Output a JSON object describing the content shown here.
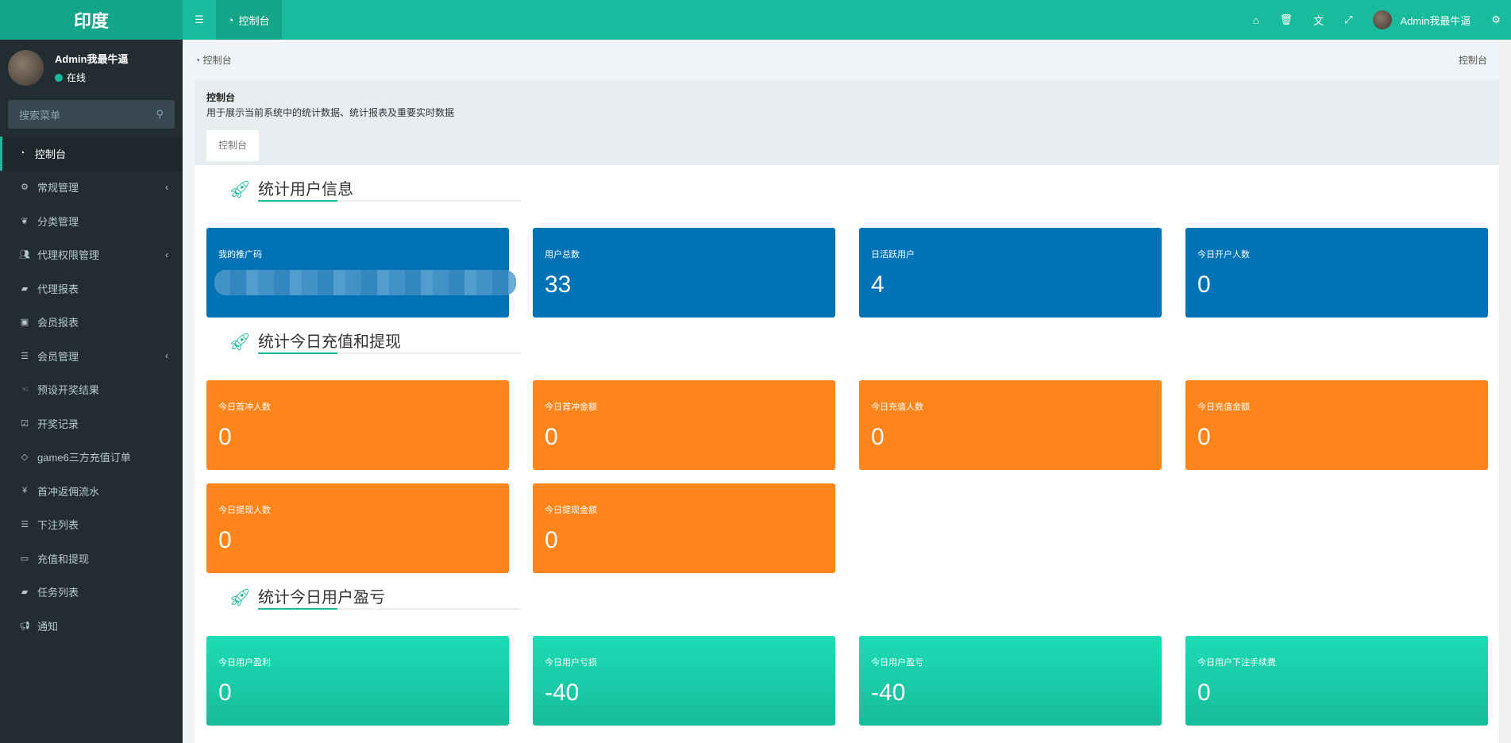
{
  "app": {
    "logo": "印度"
  },
  "navbar": {
    "tab_label": "控制台",
    "username": "Admin我最牛逼",
    "icons": [
      "home-icon",
      "trash-icon",
      "language-icon",
      "fullscreen-icon",
      "gears-icon"
    ]
  },
  "sidebar": {
    "user": {
      "name": "Admin我最牛逼",
      "status": "在线"
    },
    "search_placeholder": "搜索菜单",
    "items": [
      {
        "label": "控制台",
        "icon": "dashboard-icon",
        "active": true
      },
      {
        "label": "常规管理",
        "icon": "cogs-icon",
        "has_children": true
      },
      {
        "label": "分类管理",
        "icon": "leaf-icon"
      },
      {
        "label": "代理权限管理",
        "icon": "group-icon",
        "has_children": true
      },
      {
        "label": "代理报表",
        "icon": "book-icon"
      },
      {
        "label": "会员报表",
        "icon": "contact-icon"
      },
      {
        "label": "会员管理",
        "icon": "list-icon",
        "has_children": true
      },
      {
        "label": "预设开奖结果",
        "icon": "hand-icon"
      },
      {
        "label": "开奖记录",
        "icon": "calendar-check-icon"
      },
      {
        "label": "game6三方充值订单",
        "icon": "diamond-icon"
      },
      {
        "label": "首冲返佣流水",
        "icon": "yen-icon"
      },
      {
        "label": "下注列表",
        "icon": "list-icon"
      },
      {
        "label": "充值和提现",
        "icon": "money-icon"
      },
      {
        "label": "任务列表",
        "icon": "book-icon"
      },
      {
        "label": "通知",
        "icon": "bullhorn-icon"
      }
    ]
  },
  "breadcrumb": {
    "left": "控制台",
    "right": "控制台"
  },
  "panel": {
    "title": "控制台",
    "description": "用于展示当前系统中的统计数据、统计报表及重要实时数据",
    "tab": "控制台"
  },
  "sections": [
    {
      "title": "统计用户信息",
      "color": "#0073b7",
      "cards": [
        {
          "label": "我的推广码",
          "value": ""
        },
        {
          "label": "用户总数",
          "value": "33"
        },
        {
          "label": "日活跃用户",
          "value": "4"
        },
        {
          "label": "今日开户人数",
          "value": "0"
        }
      ]
    },
    {
      "title": "统计今日充值和提现",
      "color": "#ff851b",
      "cards": [
        {
          "label": "今日首冲人数",
          "value": "0"
        },
        {
          "label": "今日首冲金额",
          "value": "0"
        },
        {
          "label": "今日充值人数",
          "value": "0"
        },
        {
          "label": "今日充值金额",
          "value": "0"
        },
        {
          "label": "今日提现人数",
          "value": "0"
        },
        {
          "label": "今日提现金额",
          "value": "0"
        }
      ]
    },
    {
      "title": "统计今日用户盈亏",
      "color": "#1cd0ab",
      "cards": [
        {
          "label": "今日用户盈利",
          "value": "0"
        },
        {
          "label": "今日用户亏损",
          "value": "-40"
        },
        {
          "label": "今日用户盈亏",
          "value": "-40"
        },
        {
          "label": "今日用户下注手续费",
          "value": "0"
        }
      ]
    }
  ]
}
